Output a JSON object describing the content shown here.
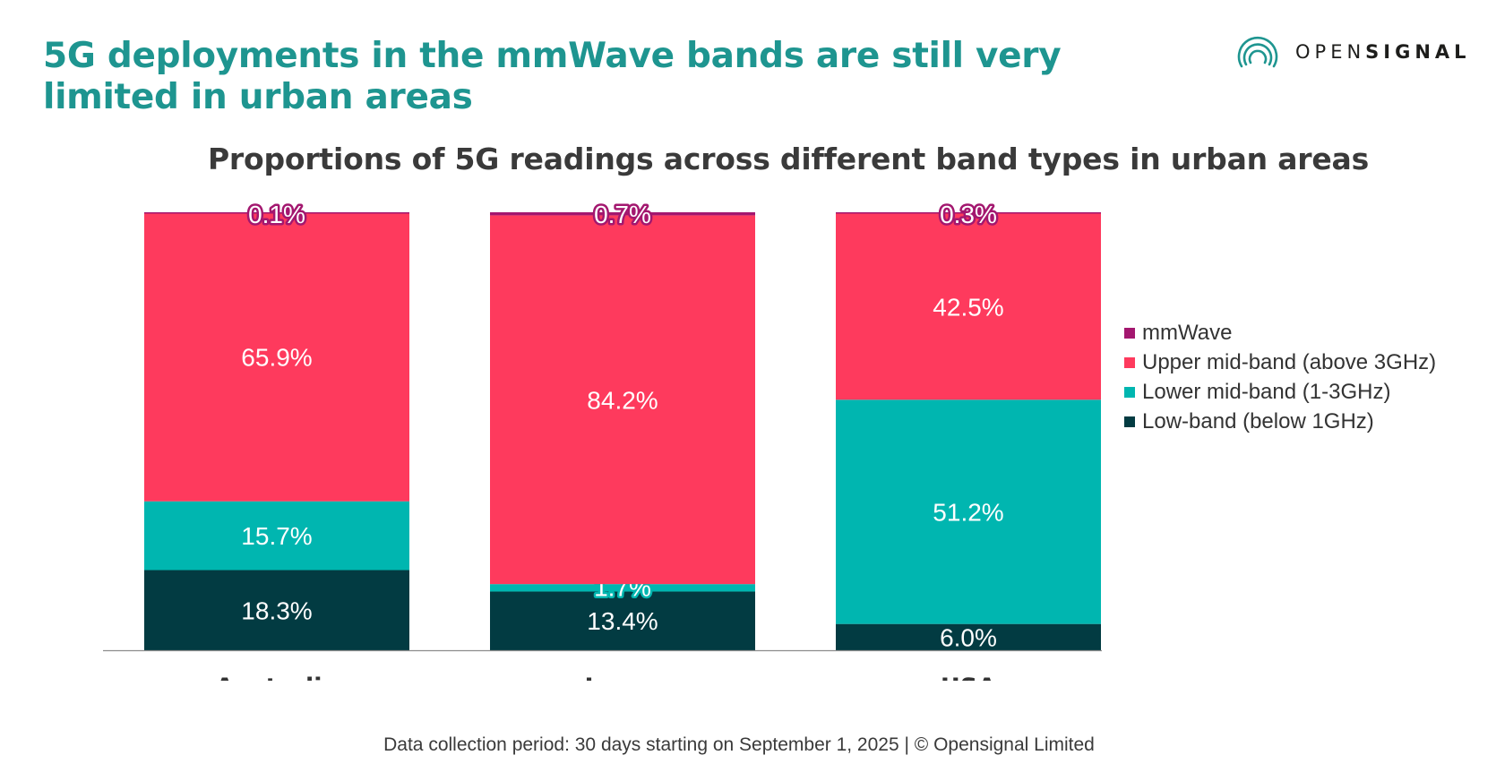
{
  "slide": {
    "headline": "5G deployments in the mmWave bands are still very limited in urban areas",
    "footer": "Data collection period: 30 days starting on September 1, 2025 | © Opensignal Limited"
  },
  "logo": {
    "text_light": "OPEN",
    "text_bold": "SIGNAL",
    "icon": "opensignal-concentric-arcs-icon"
  },
  "colors": {
    "brand_teal": "#1e9590",
    "mmwave": "#a3176f",
    "upper_mid_band": "#fe3a5d",
    "lower_mid_band": "#00b6b0",
    "low_band": "#023b42"
  },
  "chart_data": {
    "type": "bar",
    "stacked": true,
    "title": "Proportions of 5G readings across different band types in urban areas",
    "categories": [
      "Australia",
      "Japan",
      "USA"
    ],
    "ylim": [
      0,
      100
    ],
    "unit": "%",
    "grid": false,
    "legend_position": "right",
    "series": [
      {
        "name": "Low-band (below 1GHz)",
        "values": [
          18.3,
          13.4,
          6.0
        ],
        "labels": [
          "18.3%",
          "13.4%",
          "6.0%"
        ]
      },
      {
        "name": "Lower mid-band (1-3GHz)",
        "values": [
          15.7,
          1.7,
          51.2
        ],
        "labels": [
          "15.7%",
          "1.7%",
          "51.2%"
        ]
      },
      {
        "name": "Upper mid-band (above 3GHz)",
        "values": [
          65.9,
          84.2,
          42.5
        ],
        "labels": [
          "65.9%",
          "84.2%",
          "42.5%"
        ]
      },
      {
        "name": "mmWave",
        "values": [
          0.1,
          0.7,
          0.3
        ],
        "labels": [
          "0.1%",
          "0.7%",
          "0.3%"
        ]
      }
    ],
    "legend_order": [
      "mmWave",
      "Upper mid-band (above 3GHz)",
      "Lower mid-band (1-3GHz)",
      "Low-band (below 1GHz)"
    ]
  }
}
